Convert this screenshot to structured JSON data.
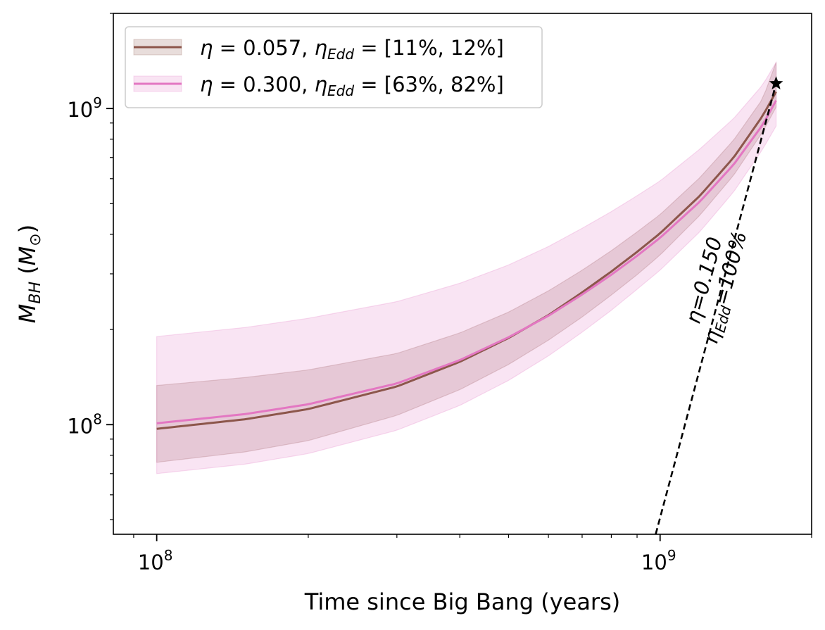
{
  "chart_data": {
    "type": "line",
    "xlabel": "Time since Big Bang (years)",
    "ylabel_main": "M",
    "ylabel_sub": "BH",
    "ylabel_unit_main": "M",
    "ylabel_unit_sub": "⊙",
    "xscale": "log",
    "yscale": "log",
    "xlim": [
      82000000,
      2000000000
    ],
    "ylim": [
      45000000,
      2000000000
    ],
    "grid": false,
    "legend_placement": "top-left",
    "x_ticks": [
      {
        "value": 100000000,
        "base": "10",
        "exp": "8"
      },
      {
        "value": 1000000000,
        "base": "10",
        "exp": "9"
      }
    ],
    "y_ticks": [
      {
        "value": 100000000,
        "base": "10",
        "exp": "8"
      },
      {
        "value": 1000000000,
        "base": "10",
        "exp": "9"
      }
    ],
    "series": [
      {
        "name": "η = 0.057, η_Edd = [11%, 12%]",
        "legend": {
          "eta": "0.057",
          "range": "[11%, 12%]"
        },
        "color": "#8c564b",
        "x": [
          100000000,
          150000000,
          200000000,
          300000000,
          400000000,
          500000000,
          600000000,
          700000000,
          800000000,
          900000000,
          1000000000,
          1200000000,
          1400000000,
          1600000000,
          1700000000
        ],
        "y": [
          97000000,
          104000000,
          112000000,
          132000000,
          158000000,
          188000000,
          222000000,
          262000000,
          305000000,
          352000000,
          403000000,
          530000000,
          700000000,
          950000000,
          1130000000
        ],
        "y_low": [
          76000000,
          82000000,
          89000000,
          107000000,
          129000000,
          155000000,
          185000000,
          219000000,
          257000000,
          298000000,
          344000000,
          460000000,
          615000000,
          845000000,
          1010000000
        ],
        "y_high": [
          133000000,
          141000000,
          149000000,
          168000000,
          195000000,
          227000000,
          265000000,
          308000000,
          355000000,
          407000000,
          462000000,
          605000000,
          795000000,
          1075000000,
          1400000000
        ]
      },
      {
        "name": "η = 0.300, η_Edd = [63%, 82%]",
        "legend": {
          "eta": "0.300",
          "range": "[63%, 82%]"
        },
        "color": "#e377c2",
        "x": [
          100000000,
          150000000,
          200000000,
          300000000,
          400000000,
          500000000,
          600000000,
          700000000,
          800000000,
          900000000,
          1000000000,
          1200000000,
          1400000000,
          1600000000,
          1700000000
        ],
        "y": [
          101000000,
          108000000,
          116000000,
          135000000,
          160000000,
          189000000,
          221000000,
          258000000,
          298000000,
          342000000,
          390000000,
          508000000,
          665000000,
          890000000,
          1060000000
        ],
        "y_low": [
          70000000,
          75000000,
          81000000,
          96000000,
          115000000,
          138000000,
          165000000,
          196000000,
          230000000,
          268000000,
          308000000,
          408000000,
          545000000,
          745000000,
          880000000
        ],
        "y_high": [
          190000000,
          203000000,
          217000000,
          245000000,
          280000000,
          320000000,
          366000000,
          418000000,
          472000000,
          530000000,
          590000000,
          745000000,
          930000000,
          1190000000,
          1400000000
        ]
      }
    ],
    "reference_line": {
      "style": "dashed",
      "color": "#000000",
      "x": [
        980000000,
        1700000000
      ],
      "y": [
        45000000,
        1200000000
      ],
      "label_eta": "η=0.150",
      "label_edd": "η",
      "label_edd_sub": "Edd",
      "label_edd_value": "=100%"
    },
    "marker": {
      "shape": "star",
      "x": 1700000000,
      "y": 1200000000,
      "color": "#000000"
    }
  }
}
